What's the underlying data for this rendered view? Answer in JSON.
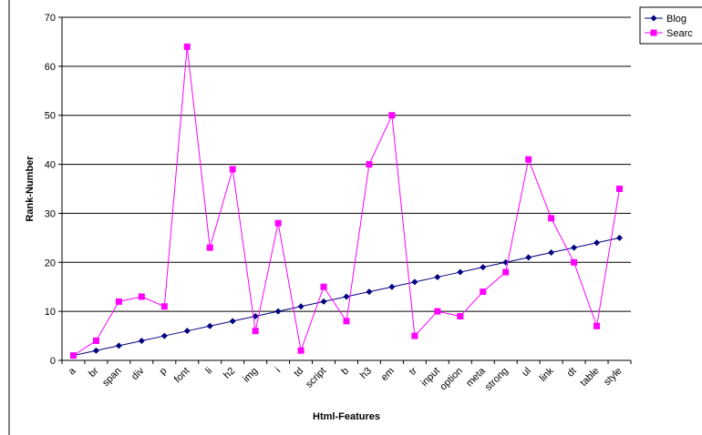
{
  "chart_data": {
    "type": "line",
    "title": "",
    "xlabel": "Html-Features",
    "ylabel": "Rank-Number",
    "ylim": [
      0,
      70
    ],
    "yticks": [
      0,
      10,
      20,
      30,
      40,
      50,
      60,
      70
    ],
    "grid": "horizontal",
    "legend_position": "top-right",
    "categories": [
      "a",
      "br",
      "span",
      "div",
      "p",
      "font",
      "li",
      "h2",
      "img",
      "i",
      "td",
      "script",
      "b",
      "h3",
      "em",
      "tr",
      "input",
      "option",
      "meta",
      "strong",
      "ul",
      "link",
      "dt",
      "table",
      "style"
    ],
    "series": [
      {
        "name": "Blog",
        "color": "#000080",
        "marker": "diamond",
        "values": [
          1,
          2,
          3,
          4,
          5,
          6,
          7,
          8,
          9,
          10,
          11,
          12,
          13,
          14,
          15,
          16,
          17,
          18,
          19,
          20,
          21,
          22,
          23,
          24,
          25
        ]
      },
      {
        "name": "Searc",
        "color": "#FF00FF",
        "marker": "square",
        "values": [
          1,
          4,
          12,
          13,
          11,
          64,
          23,
          39,
          6,
          28,
          2,
          15,
          8,
          40,
          50,
          5,
          10,
          9,
          14,
          18,
          41,
          29,
          20,
          7,
          35
        ]
      }
    ]
  }
}
